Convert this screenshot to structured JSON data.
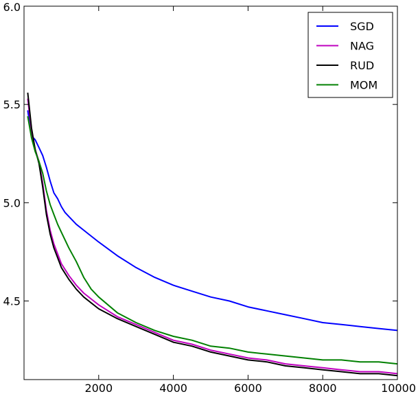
{
  "chart_data": {
    "type": "line",
    "title": "",
    "xlabel": "",
    "ylabel": "",
    "xlim": [
      0,
      10000
    ],
    "ylim": [
      4.1,
      6.0
    ],
    "grid": false,
    "legend_position": "top-right",
    "x_ticks": [
      {
        "value": 2000,
        "label": "2000"
      },
      {
        "value": 4000,
        "label": "4000"
      },
      {
        "value": 6000,
        "label": "6000"
      },
      {
        "value": 8000,
        "label": "8000"
      },
      {
        "value": 10000,
        "label": "10000"
      }
    ],
    "y_ticks": [
      {
        "value": 4.5,
        "label": "4.5"
      },
      {
        "value": 5.0,
        "label": "5.0"
      },
      {
        "value": 5.5,
        "label": "5.5"
      },
      {
        "value": 6.0,
        "label": "6.0"
      }
    ],
    "series": [
      {
        "name": "SGD",
        "color": "#0000ff",
        "points": [
          [
            100,
            5.47
          ],
          [
            200,
            5.34
          ],
          [
            300,
            5.32
          ],
          [
            400,
            5.28
          ],
          [
            500,
            5.24
          ],
          [
            600,
            5.18
          ],
          [
            700,
            5.11
          ],
          [
            800,
            5.05
          ],
          [
            900,
            5.02
          ],
          [
            1000,
            4.98
          ],
          [
            1100,
            4.95
          ],
          [
            1200,
            4.93
          ],
          [
            1400,
            4.89
          ],
          [
            1600,
            4.86
          ],
          [
            1800,
            4.83
          ],
          [
            2000,
            4.8
          ],
          [
            2500,
            4.73
          ],
          [
            3000,
            4.67
          ],
          [
            3500,
            4.62
          ],
          [
            4000,
            4.58
          ],
          [
            4500,
            4.55
          ],
          [
            5000,
            4.52
          ],
          [
            5500,
            4.5
          ],
          [
            6000,
            4.47
          ],
          [
            6500,
            4.45
          ],
          [
            7000,
            4.43
          ],
          [
            7500,
            4.41
          ],
          [
            8000,
            4.39
          ],
          [
            8500,
            4.38
          ],
          [
            9000,
            4.37
          ],
          [
            9500,
            4.36
          ],
          [
            10000,
            4.35
          ]
        ]
      },
      {
        "name": "NAG",
        "color": "#bf00bf",
        "points": [
          [
            100,
            5.53
          ],
          [
            200,
            5.36
          ],
          [
            300,
            5.27
          ],
          [
            400,
            5.21
          ],
          [
            500,
            5.1
          ],
          [
            600,
            4.96
          ],
          [
            700,
            4.86
          ],
          [
            800,
            4.79
          ],
          [
            900,
            4.74
          ],
          [
            1000,
            4.69
          ],
          [
            1200,
            4.63
          ],
          [
            1400,
            4.58
          ],
          [
            1600,
            4.54
          ],
          [
            1800,
            4.51
          ],
          [
            2000,
            4.48
          ],
          [
            2500,
            4.42
          ],
          [
            3000,
            4.38
          ],
          [
            3500,
            4.34
          ],
          [
            4000,
            4.3
          ],
          [
            4500,
            4.28
          ],
          [
            5000,
            4.25
          ],
          [
            5500,
            4.23
          ],
          [
            6000,
            4.21
          ],
          [
            6500,
            4.2
          ],
          [
            7000,
            4.18
          ],
          [
            7500,
            4.17
          ],
          [
            8000,
            4.16
          ],
          [
            8500,
            4.15
          ],
          [
            9000,
            4.14
          ],
          [
            9500,
            4.14
          ],
          [
            10000,
            4.13
          ]
        ]
      },
      {
        "name": "RUD",
        "color": "#000000",
        "points": [
          [
            100,
            5.56
          ],
          [
            200,
            5.38
          ],
          [
            300,
            5.27
          ],
          [
            400,
            5.2
          ],
          [
            500,
            5.08
          ],
          [
            600,
            4.94
          ],
          [
            700,
            4.84
          ],
          [
            800,
            4.77
          ],
          [
            900,
            4.72
          ],
          [
            1000,
            4.67
          ],
          [
            1200,
            4.61
          ],
          [
            1400,
            4.56
          ],
          [
            1600,
            4.52
          ],
          [
            1800,
            4.49
          ],
          [
            2000,
            4.46
          ],
          [
            2500,
            4.41
          ],
          [
            3000,
            4.37
          ],
          [
            3500,
            4.33
          ],
          [
            4000,
            4.29
          ],
          [
            4500,
            4.27
          ],
          [
            5000,
            4.24
          ],
          [
            5500,
            4.22
          ],
          [
            6000,
            4.2
          ],
          [
            6500,
            4.19
          ],
          [
            7000,
            4.17
          ],
          [
            7500,
            4.16
          ],
          [
            8000,
            4.15
          ],
          [
            8500,
            4.14
          ],
          [
            9000,
            4.13
          ],
          [
            9500,
            4.13
          ],
          [
            10000,
            4.12
          ]
        ]
      },
      {
        "name": "MOM",
        "color": "#008000",
        "points": [
          [
            100,
            5.44
          ],
          [
            200,
            5.33
          ],
          [
            300,
            5.26
          ],
          [
            400,
            5.21
          ],
          [
            500,
            5.15
          ],
          [
            600,
            5.06
          ],
          [
            700,
            4.99
          ],
          [
            800,
            4.94
          ],
          [
            900,
            4.89
          ],
          [
            1000,
            4.85
          ],
          [
            1200,
            4.77
          ],
          [
            1400,
            4.7
          ],
          [
            1600,
            4.62
          ],
          [
            1800,
            4.56
          ],
          [
            2000,
            4.52
          ],
          [
            2500,
            4.44
          ],
          [
            3000,
            4.39
          ],
          [
            3500,
            4.35
          ],
          [
            4000,
            4.32
          ],
          [
            4500,
            4.3
          ],
          [
            5000,
            4.27
          ],
          [
            5500,
            4.26
          ],
          [
            6000,
            4.24
          ],
          [
            6500,
            4.23
          ],
          [
            7000,
            4.22
          ],
          [
            7500,
            4.21
          ],
          [
            8000,
            4.2
          ],
          [
            8500,
            4.2
          ],
          [
            9000,
            4.19
          ],
          [
            9500,
            4.19
          ],
          [
            10000,
            4.18
          ]
        ]
      }
    ]
  }
}
